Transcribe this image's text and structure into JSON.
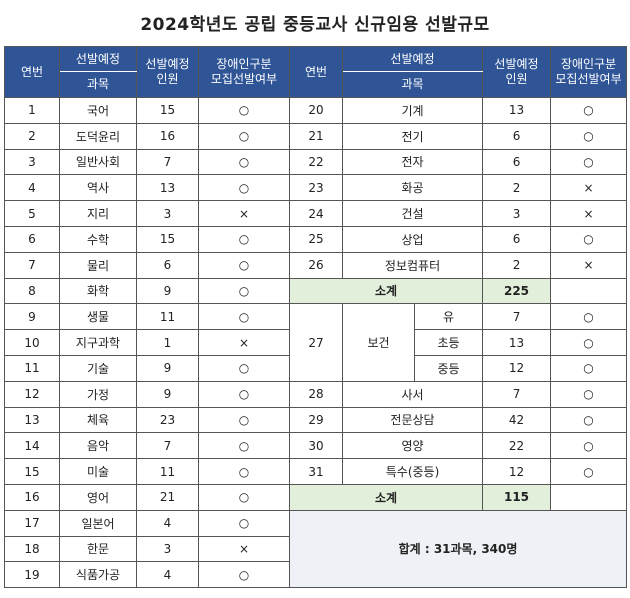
{
  "title": "2024학년도 공립 중등교사 신규임용 선발규모",
  "headers": {
    "no": "연번",
    "category_top": "선발예정",
    "subject": "과목",
    "count": "선발예정\n인원",
    "disability": "장애인구분\n모집선발여부"
  },
  "left_rows": [
    {
      "no": "1",
      "subject": "국어",
      "count": "15",
      "dis": "○"
    },
    {
      "no": "2",
      "subject": "도덕윤리",
      "count": "16",
      "dis": "○"
    },
    {
      "no": "3",
      "subject": "일반사회",
      "count": "7",
      "dis": "○"
    },
    {
      "no": "4",
      "subject": "역사",
      "count": "13",
      "dis": "○"
    },
    {
      "no": "5",
      "subject": "지리",
      "count": "3",
      "dis": "×"
    },
    {
      "no": "6",
      "subject": "수학",
      "count": "15",
      "dis": "○"
    },
    {
      "no": "7",
      "subject": "물리",
      "count": "6",
      "dis": "○"
    },
    {
      "no": "8",
      "subject": "화학",
      "count": "9",
      "dis": "○"
    },
    {
      "no": "9",
      "subject": "생물",
      "count": "11",
      "dis": "○"
    },
    {
      "no": "10",
      "subject": "지구과학",
      "count": "1",
      "dis": "×"
    },
    {
      "no": "11",
      "subject": "기술",
      "count": "9",
      "dis": "○"
    },
    {
      "no": "12",
      "subject": "가정",
      "count": "9",
      "dis": "○"
    },
    {
      "no": "13",
      "subject": "체육",
      "count": "23",
      "dis": "○"
    },
    {
      "no": "14",
      "subject": "음악",
      "count": "7",
      "dis": "○"
    },
    {
      "no": "15",
      "subject": "미술",
      "count": "11",
      "dis": "○"
    },
    {
      "no": "16",
      "subject": "영어",
      "count": "21",
      "dis": "○"
    },
    {
      "no": "17",
      "subject": "일본어",
      "count": "4",
      "dis": "○"
    },
    {
      "no": "18",
      "subject": "한문",
      "count": "3",
      "dis": "×"
    },
    {
      "no": "19",
      "subject": "식품가공",
      "count": "4",
      "dis": "○"
    }
  ],
  "right_rows_a": [
    {
      "no": "20",
      "subject": "기계",
      "count": "13",
      "dis": "○"
    },
    {
      "no": "21",
      "subject": "전기",
      "count": "6",
      "dis": "○"
    },
    {
      "no": "22",
      "subject": "전자",
      "count": "6",
      "dis": "○"
    },
    {
      "no": "23",
      "subject": "화공",
      "count": "2",
      "dis": "×"
    },
    {
      "no": "24",
      "subject": "건설",
      "count": "3",
      "dis": "×"
    },
    {
      "no": "25",
      "subject": "상업",
      "count": "6",
      "dis": "○"
    },
    {
      "no": "26",
      "subject": "정보컴퓨터",
      "count": "2",
      "dis": "×"
    }
  ],
  "subtotal1": {
    "label": "소계",
    "value": "225"
  },
  "health": {
    "no": "27",
    "subject": "보건",
    "subs": [
      {
        "name": "유",
        "count": "7",
        "dis": "○"
      },
      {
        "name": "초등",
        "count": "13",
        "dis": "○"
      },
      {
        "name": "중등",
        "count": "12",
        "dis": "○"
      }
    ]
  },
  "right_rows_b": [
    {
      "no": "28",
      "subject": "사서",
      "count": "7",
      "dis": "○"
    },
    {
      "no": "29",
      "subject": "전문상담",
      "count": "42",
      "dis": "○"
    },
    {
      "no": "30",
      "subject": "영양",
      "count": "22",
      "dis": "○"
    },
    {
      "no": "31",
      "subject": "특수(중등)",
      "count": "12",
      "dis": "○"
    }
  ],
  "subtotal2": {
    "label": "소계",
    "value": "115"
  },
  "total": "합계 : 31과목, 340명"
}
